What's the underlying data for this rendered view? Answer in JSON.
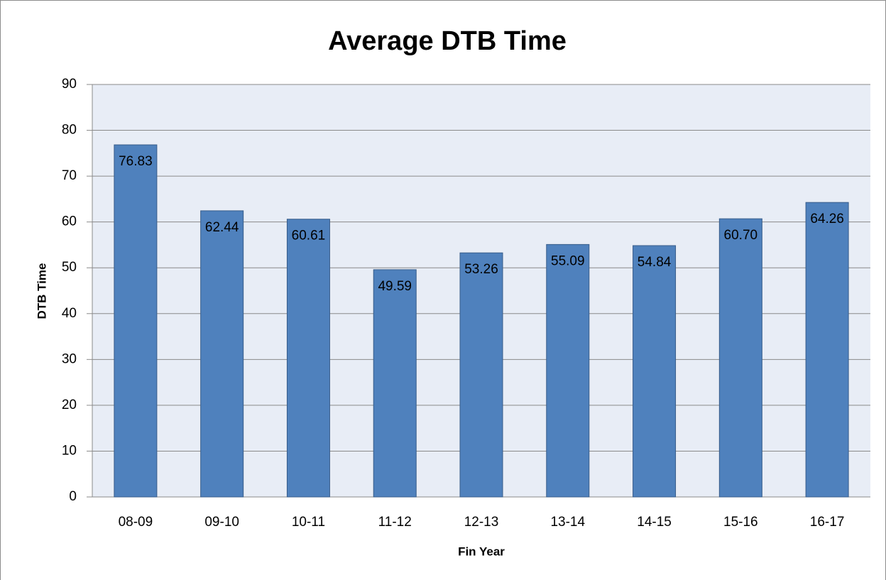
{
  "chart_data": {
    "type": "bar",
    "title": "Average DTB Time",
    "x_label": "Fin Year",
    "y_label": "DTB Time",
    "categories": [
      "08-09",
      "09-10",
      "10-11",
      "11-12",
      "12-13",
      "13-14",
      "14-15",
      "15-16",
      "16-17"
    ],
    "values": [
      76.83,
      62.44,
      60.61,
      49.59,
      53.26,
      55.09,
      54.84,
      60.7,
      64.26
    ],
    "value_labels": [
      "76.83",
      "62.44",
      "60.61",
      "49.59",
      "53.26",
      "55.09",
      "54.84",
      "60.70",
      "64.26"
    ],
    "color": "#4f81bd",
    "ylim": [
      0,
      90
    ],
    "yticks": [
      0,
      10,
      20,
      30,
      40,
      50,
      60,
      70,
      80,
      90
    ],
    "grid": true
  }
}
